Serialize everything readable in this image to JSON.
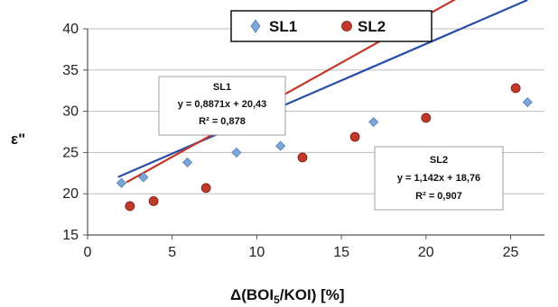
{
  "chart_data": {
    "type": "scatter",
    "xlabel_prefix": "Δ(BOI",
    "xlabel_sub": "5",
    "xlabel_suffix": "/KOI) [%]",
    "ylabel": "ε\"",
    "xlim": [
      0,
      27
    ],
    "ylim": [
      15,
      40
    ],
    "xticks": [
      0,
      5,
      10,
      15,
      20,
      25
    ],
    "yticks": [
      15,
      20,
      25,
      30,
      35,
      40
    ],
    "x_tick_labels": [
      "0",
      "5",
      "10",
      "15",
      "20",
      "25"
    ],
    "y_tick_labels": [
      "15",
      "20",
      "25",
      "30",
      "35",
      "40"
    ],
    "grid": "horizontal",
    "legend_position": "top",
    "series": [
      {
        "name": "SL1",
        "marker": "diamond",
        "marker_color": "#7ba6d6",
        "line_color": "#2a4fa8",
        "points": [
          {
            "x": 2.0,
            "y": 21.3
          },
          {
            "x": 3.3,
            "y": 22.0
          },
          {
            "x": 5.9,
            "y": 23.8
          },
          {
            "x": 8.8,
            "y": 25.0
          },
          {
            "x": 11.4,
            "y": 25.8
          },
          {
            "x": 16.9,
            "y": 28.7
          },
          {
            "x": 26.0,
            "y": 31.1
          }
        ],
        "fit": {
          "slope": 0.8871,
          "intercept": 20.43,
          "x_range": [
            1.8,
            26.0
          ]
        },
        "annotation": {
          "title": "SL1",
          "equation": "y = 0,8871x + 20,43",
          "r2": "R² = 0,878"
        }
      },
      {
        "name": "SL2",
        "marker": "circle",
        "marker_color": "#c0392b",
        "line_color": "#c0392b",
        "points": [
          {
            "x": 2.5,
            "y": 18.5
          },
          {
            "x": 3.9,
            "y": 19.1
          },
          {
            "x": 7.0,
            "y": 20.7
          },
          {
            "x": 12.7,
            "y": 24.4
          },
          {
            "x": 15.8,
            "y": 26.9
          },
          {
            "x": 20.0,
            "y": 29.2
          },
          {
            "x": 25.3,
            "y": 32.8
          }
        ],
        "fit": {
          "slope": 1.142,
          "intercept": 18.76,
          "x_range": [
            2.3,
            25.4
          ]
        },
        "annotation": {
          "title": "SL2",
          "equation": "y = 1,142x + 18,76",
          "r2": "R² = 0,907"
        }
      }
    ]
  }
}
